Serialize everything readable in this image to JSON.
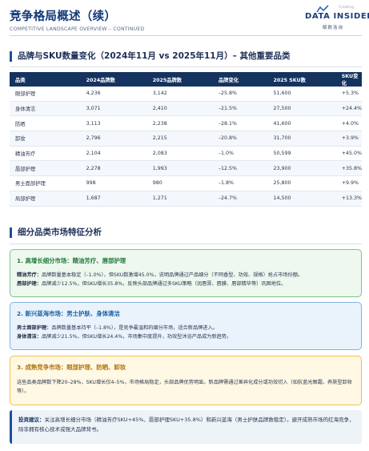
{
  "header": {
    "title": "竞争格局概述（续）",
    "subtitle": "COMPETITIVE LANDSCAPE OVERVIEW – CONTINUED",
    "logo": {
      "small_text": "Creating",
      "word": "DATA INSIDER",
      "cn": "解数洛询"
    }
  },
  "section1": {
    "title": "品牌与SKU数量变化（2024年11月 vs 2025年11月）– 其他重要品类",
    "table": {
      "columns": [
        "品类",
        "2024品牌数",
        "2025品牌数",
        "品牌变化",
        "2025 SKU数",
        "SKU变化"
      ],
      "rows": [
        [
          "眼部护理",
          "4,236",
          "3,142",
          "–25.8%",
          "51,600",
          "+5.3%"
        ],
        [
          "身体清洁",
          "3,071",
          "2,410",
          "–21.5%",
          "27,500",
          "+24.4%"
        ],
        [
          "防晒",
          "3,113",
          "2,238",
          "–28.1%",
          "41,600",
          "+4.0%"
        ],
        [
          "卸妆",
          "2,796",
          "2,215",
          "–20.8%",
          "31,700",
          "+3.9%"
        ],
        [
          "精油芳疗",
          "2,104",
          "2,083",
          "–1.0%",
          "50,599",
          "+45.0%"
        ],
        [
          "唇部护理",
          "2,278",
          "1,993",
          "–12.5%",
          "23,900",
          "+35.8%"
        ],
        [
          "男士面部护理",
          "998",
          "980",
          "–1.8%",
          "25,800",
          "+9.9%"
        ],
        [
          "局部护理",
          "1,687",
          "1,271",
          "–24.7%",
          "14,500",
          "+13.3%"
        ]
      ]
    }
  },
  "section2": {
    "title": "细分品类市场特征分析",
    "cards": [
      {
        "title": "1. 高增长细分市场：精油芳疗、唇部护理",
        "lines": [
          {
            "label": "精油芳疗：",
            "text": "品牌数量基本稳定（–1.0%），但SKU数激增45.0%，说明品牌通过产品细分（不同香型、功效、规格）抢占市场份额。"
          },
          {
            "label": "唇部护理：",
            "text": "品牌减少12.5%，但SKU增长35.8%，反映头部品牌通过多SKU策略（润唇膏、唇膜、唇部精华等）巩固地位。"
          }
        ]
      },
      {
        "title": "2. 新兴蓝海市场：男士护肤、身体清洁",
        "lines": [
          {
            "label": "男士面部护理：",
            "text": "品牌数量基本持平（–1.8%），是竞争最温和的细分市场，适合新品牌进入。"
          },
          {
            "label": "身体清洁：",
            "text": "品牌减少21.5%，但SKU增长24.4%，市场集中度提升，功效型沐浴产品成为新趋势。"
          }
        ]
      },
      {
        "title": "3. 成熟竞争市场：眼部护理、防晒、卸妆",
        "paragraph": "这些品类品牌数下降20–28%，SKU增长仅4–5%，市场格局稳定，头部品牌优势明显。新品牌需通过差异化成分或功效切入（如抗蓝光眼霜、养肤型卸妆等）。"
      }
    ]
  },
  "advice": {
    "label": "投资建议：",
    "text": "关注高增长细分市场（精油芳疗SKU+45%、唇部护理SKU+35.8%）和新兴蓝海（男士护肤品牌数稳定）。避开成熟市场的红海竞争，除非拥有核心技术或强大品牌背书。"
  },
  "colors": {
    "primary": "#15335f",
    "negative": "#d13a3a",
    "positive": "#2f9a4a",
    "green_card": "#eef8ef",
    "blue_card": "#eaf3fc",
    "yellow_card": "#fff8e4"
  }
}
